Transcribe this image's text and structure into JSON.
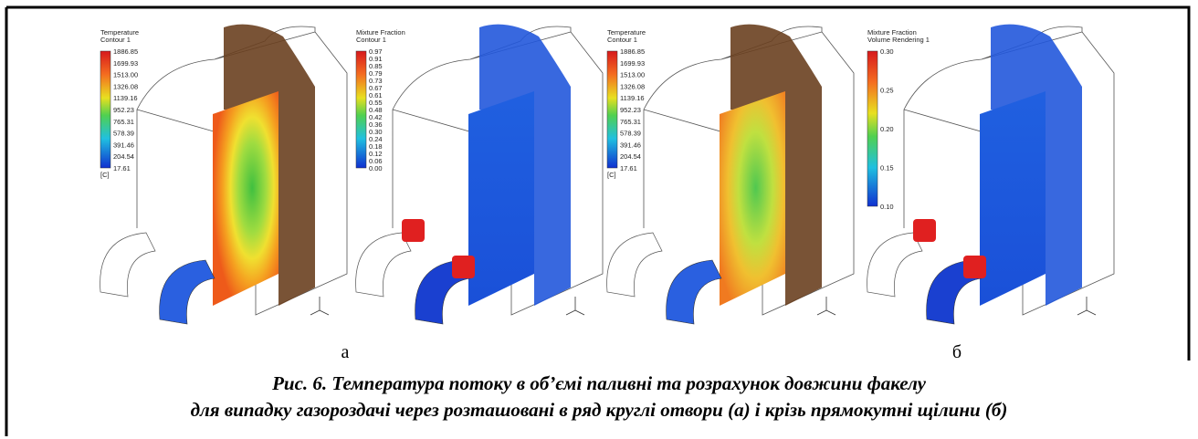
{
  "figure": {
    "panels": [
      {
        "legend": {
          "title": "Temperature",
          "subtitle": "Contour 1",
          "labels": [
            "1886.85",
            "1699.93",
            "1513.00",
            "1326.08",
            "1139.16",
            "952.23",
            "765.31",
            "578.39",
            "391.46",
            "204.54",
            "17.61"
          ],
          "unit": "[C]"
        }
      },
      {
        "legend": {
          "title": "Mixture Fraction",
          "subtitle": "Contour 1",
          "labels": [
            "0.97",
            "0.91",
            "0.85",
            "0.79",
            "0.73",
            "0.67",
            "0.61",
            "0.55",
            "0.48",
            "0.42",
            "0.36",
            "0.30",
            "0.24",
            "0.18",
            "0.12",
            "0.06",
            "0.00"
          ]
        }
      },
      {
        "legend": {
          "title": "Temperature",
          "subtitle": "Contour 1",
          "labels": [
            "1886.85",
            "1699.93",
            "1513.00",
            "1326.08",
            "1139.16",
            "952.23",
            "765.31",
            "578.39",
            "391.46",
            "204.54",
            "17.61"
          ],
          "unit": "[C]"
        }
      },
      {
        "legend": {
          "title": "Mixture Fraction",
          "subtitle": "Volume Rendering 1",
          "labels": [
            "0.30",
            "0.25",
            "0.20",
            "0.15",
            "0.10"
          ]
        }
      }
    ],
    "sublabels": [
      "а",
      "б"
    ],
    "caption": [
      "Рис. 6. Температура потоку в об’ємі паливні та розрахунок довжини факелу",
      "для випадку газороздачі через розташовані в ряд круглі отвори (а) і крізь прямокутні щілини (б)"
    ]
  }
}
